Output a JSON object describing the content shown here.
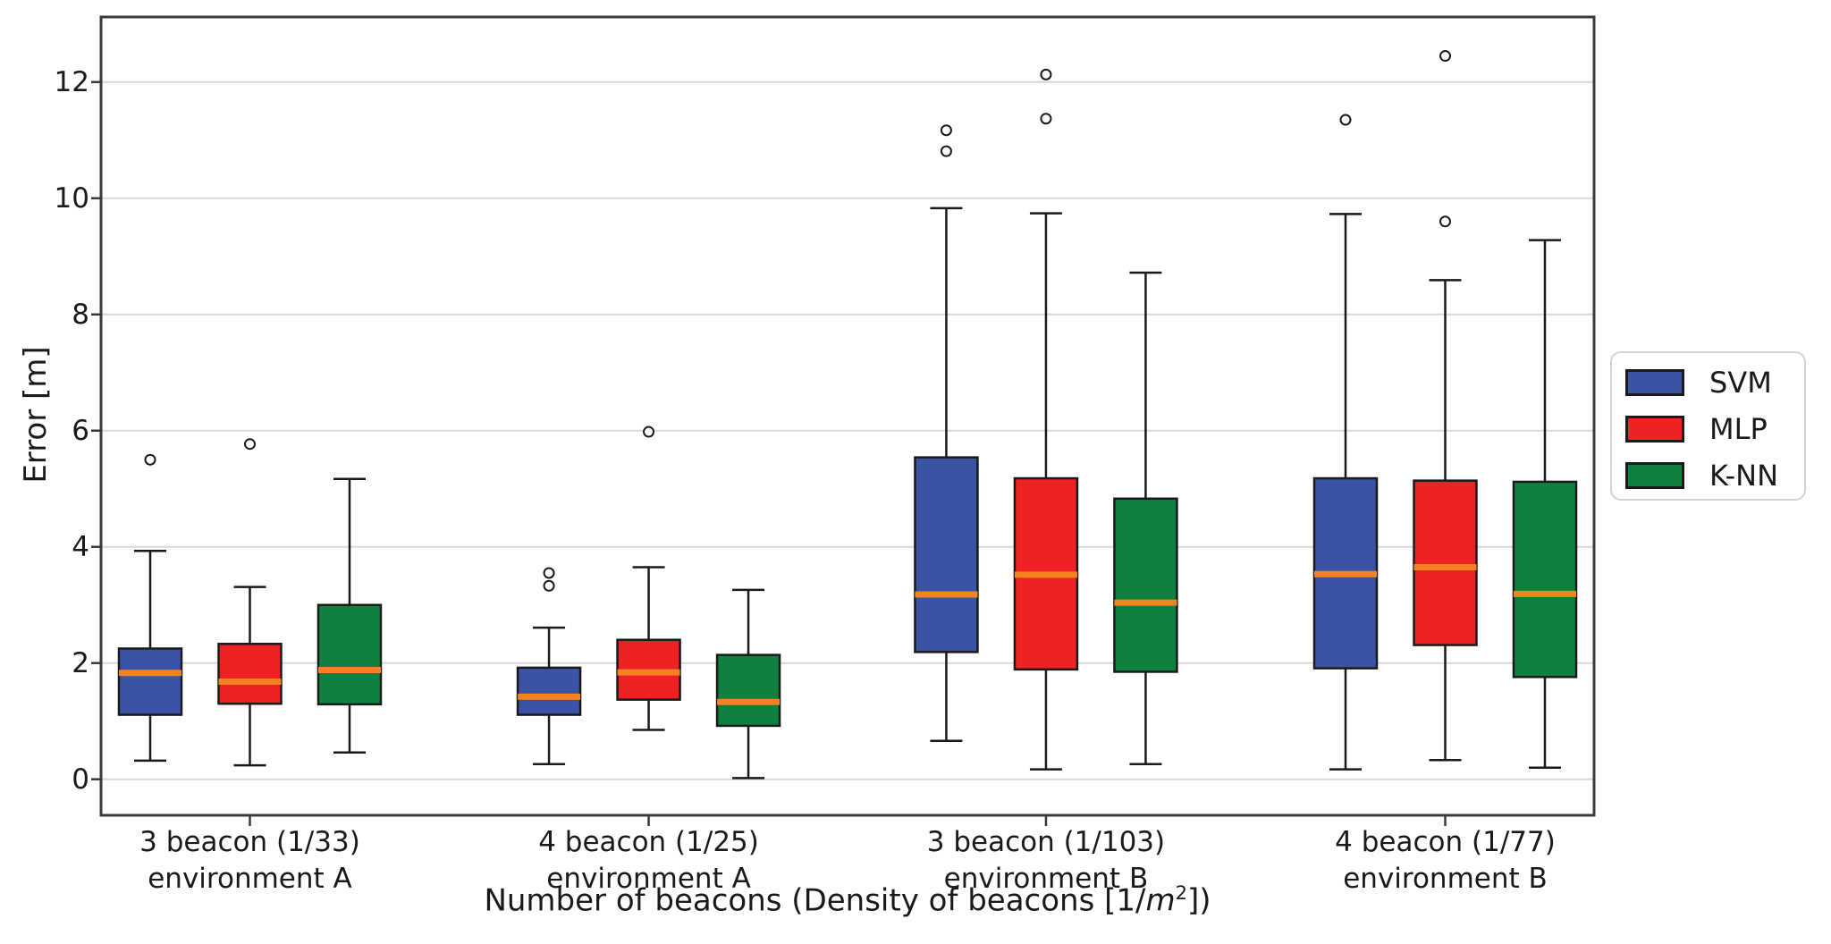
{
  "figure": {
    "ylabel": "Error [m]",
    "xlabel_parts": {
      "prefix": "Number of beacons (Density of beacons [1/",
      "italic": "m",
      "sup": "2",
      "suffix": "])"
    }
  },
  "chart_data": {
    "type": "boxplot",
    "title": "",
    "xlabel": "Number of beacons (Density of beacons [1/m²])",
    "ylabel": "Error [m]",
    "ylim": [
      -0.62,
      13.12
    ],
    "yticks": [
      0,
      2,
      4,
      6,
      8,
      10,
      12
    ],
    "grid": "horizontal",
    "legend_position": "right-outside",
    "series": [
      {
        "name": "SVM",
        "color": "#3A53A4"
      },
      {
        "name": "MLP",
        "color": "#EE2124"
      },
      {
        "name": "K-NN",
        "color": "#0E8040"
      }
    ],
    "style": {
      "median_color": "#F58220",
      "line_color": "#1a1a1a",
      "spine_color": "#3a3a3a",
      "grid_color": "#d9d9d9",
      "outlier_fill": "#ffffff"
    },
    "groups": [
      {
        "label_line1": "3 beacon (1/33)",
        "label_line2": "environment A",
        "boxes": [
          {
            "series": "SVM",
            "whisker_low": 0.32,
            "q1": 1.11,
            "median": 1.83,
            "q3": 2.25,
            "whisker_high": 3.93,
            "outliers": [
              5.5
            ]
          },
          {
            "series": "MLP",
            "whisker_low": 0.24,
            "q1": 1.3,
            "median": 1.68,
            "q3": 2.33,
            "whisker_high": 3.31,
            "outliers": [
              5.77
            ]
          },
          {
            "series": "K-NN",
            "whisker_low": 0.46,
            "q1": 1.29,
            "median": 1.88,
            "q3": 3.0,
            "whisker_high": 5.17,
            "outliers": []
          }
        ]
      },
      {
        "label_line1": "4 beacon (1/25)",
        "label_line2": "environment A",
        "boxes": [
          {
            "series": "SVM",
            "whisker_low": 0.26,
            "q1": 1.11,
            "median": 1.42,
            "q3": 1.92,
            "whisker_high": 2.61,
            "outliers": [
              3.33,
              3.55
            ]
          },
          {
            "series": "MLP",
            "whisker_low": 0.85,
            "q1": 1.37,
            "median": 1.84,
            "q3": 2.4,
            "whisker_high": 3.65,
            "outliers": [
              5.98
            ]
          },
          {
            "series": "K-NN",
            "whisker_low": 0.02,
            "q1": 0.92,
            "median": 1.33,
            "q3": 2.14,
            "whisker_high": 3.26,
            "outliers": []
          }
        ]
      },
      {
        "label_line1": "3 beacon (1/103)",
        "label_line2": "environment B",
        "boxes": [
          {
            "series": "SVM",
            "whisker_low": 0.66,
            "q1": 2.19,
            "median": 3.18,
            "q3": 5.54,
            "whisker_high": 9.83,
            "outliers": [
              10.81,
              11.17
            ]
          },
          {
            "series": "MLP",
            "whisker_low": 0.17,
            "q1": 1.89,
            "median": 3.52,
            "q3": 5.18,
            "whisker_high": 9.74,
            "outliers": [
              11.37,
              12.13
            ]
          },
          {
            "series": "K-NN",
            "whisker_low": 0.26,
            "q1": 1.85,
            "median": 3.04,
            "q3": 4.83,
            "whisker_high": 8.72,
            "outliers": []
          }
        ]
      },
      {
        "label_line1": "4 beacon (1/77)",
        "label_line2": "environment B",
        "boxes": [
          {
            "series": "SVM",
            "whisker_low": 0.17,
            "q1": 1.91,
            "median": 3.53,
            "q3": 5.18,
            "whisker_high": 9.73,
            "outliers": [
              11.35
            ]
          },
          {
            "series": "MLP",
            "whisker_low": 0.33,
            "q1": 2.31,
            "median": 3.65,
            "q3": 5.14,
            "whisker_high": 8.59,
            "outliers": [
              9.6,
              12.45
            ]
          },
          {
            "series": "K-NN",
            "whisker_low": 0.2,
            "q1": 1.76,
            "median": 3.19,
            "q3": 5.12,
            "whisker_high": 9.28,
            "outliers": []
          }
        ]
      }
    ]
  }
}
